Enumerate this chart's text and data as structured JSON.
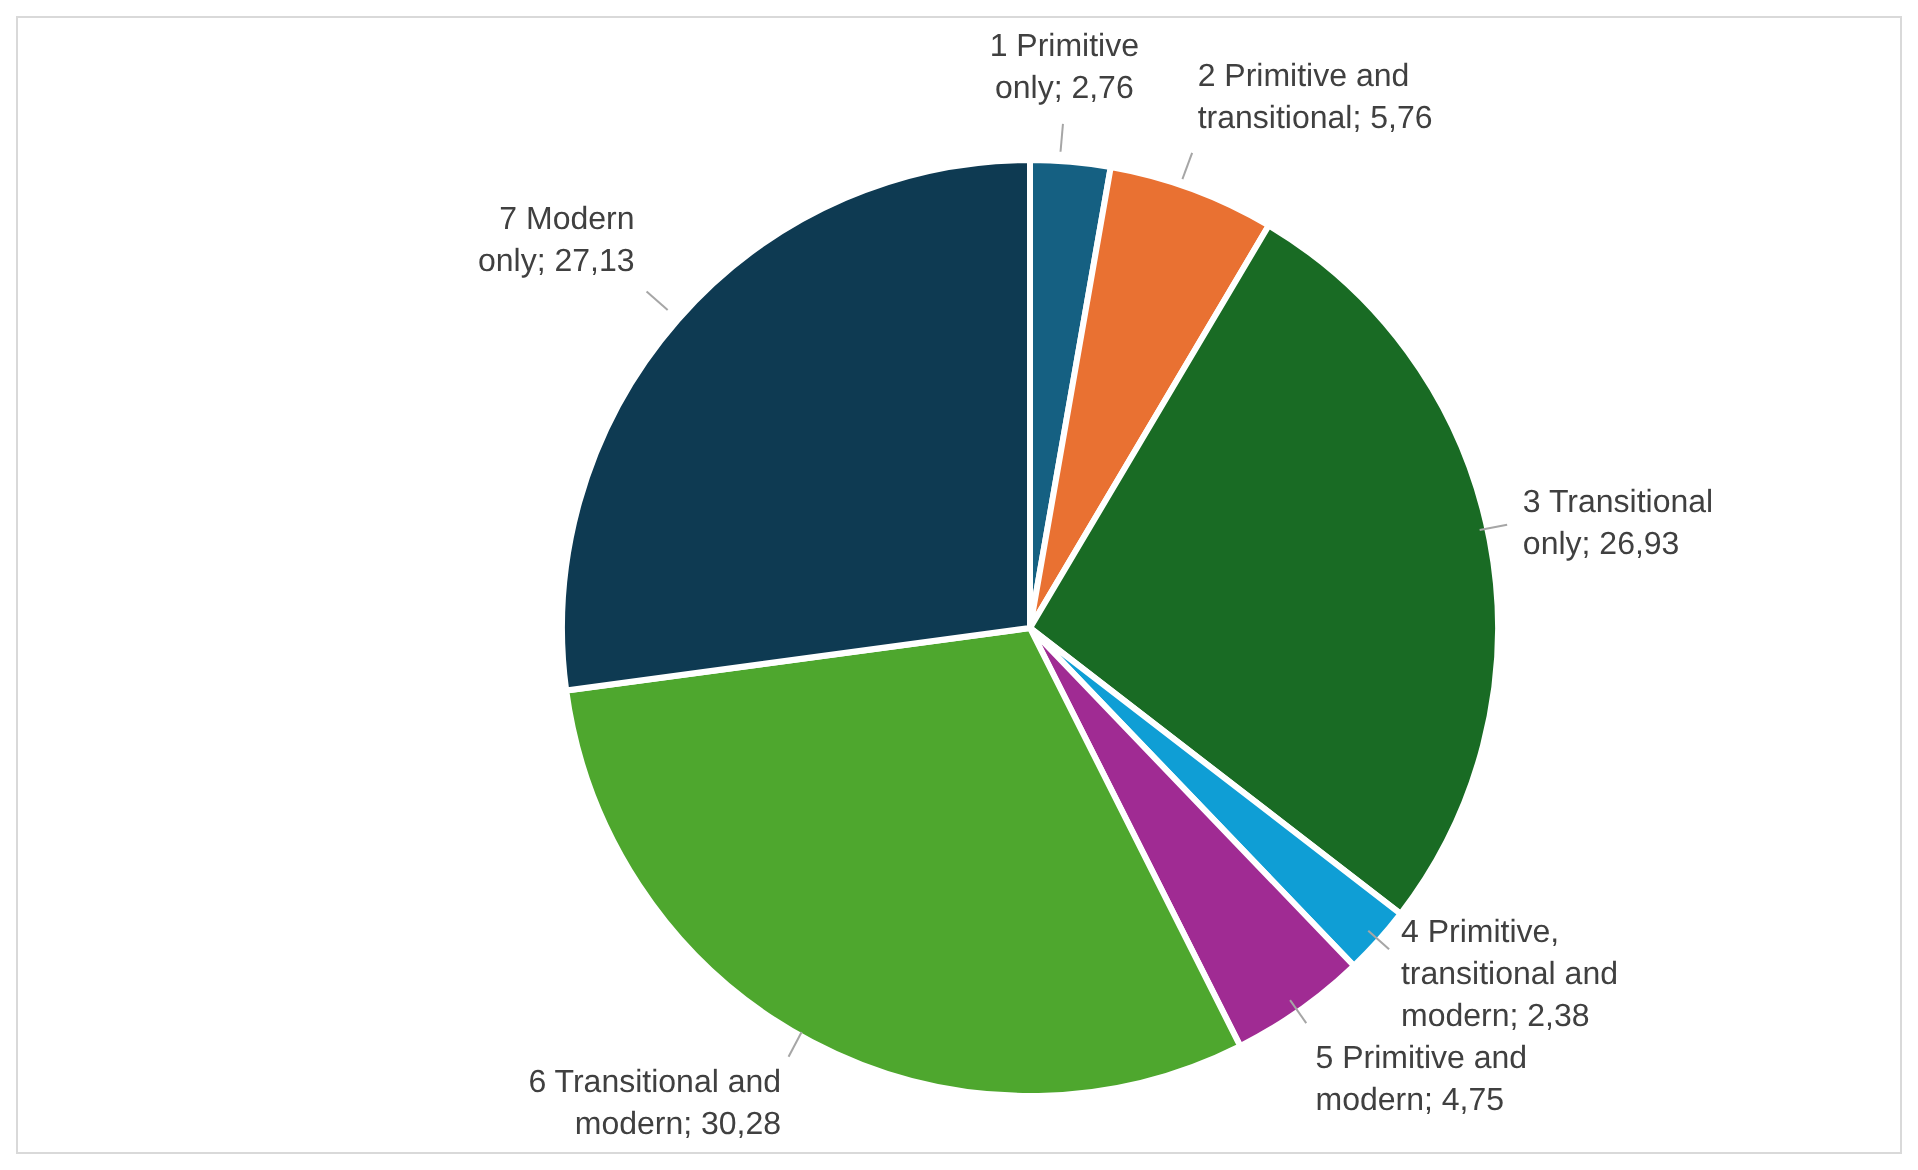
{
  "chart_data": {
    "type": "pie",
    "categories": [
      "1 Primitive only",
      "2 Primitive and transitional",
      "3 Transitional only",
      "4 Primitive, transitional and modern",
      "5 Primitive and modern",
      "6 Transitional and modern",
      "7 Modern only"
    ],
    "values": [
      2.76,
      5.76,
      26.93,
      2.38,
      4.75,
      30.28,
      27.13
    ],
    "value_labels": [
      "2,76",
      "5,76",
      "26,93",
      "2,38",
      "4,75",
      "30,28",
      "27,13"
    ],
    "colors": [
      "#156082",
      "#e97132",
      "#196b24",
      "#0f9ed5",
      "#a02b93",
      "#4ea72e",
      "#0e3a52"
    ],
    "legend": false
  }
}
